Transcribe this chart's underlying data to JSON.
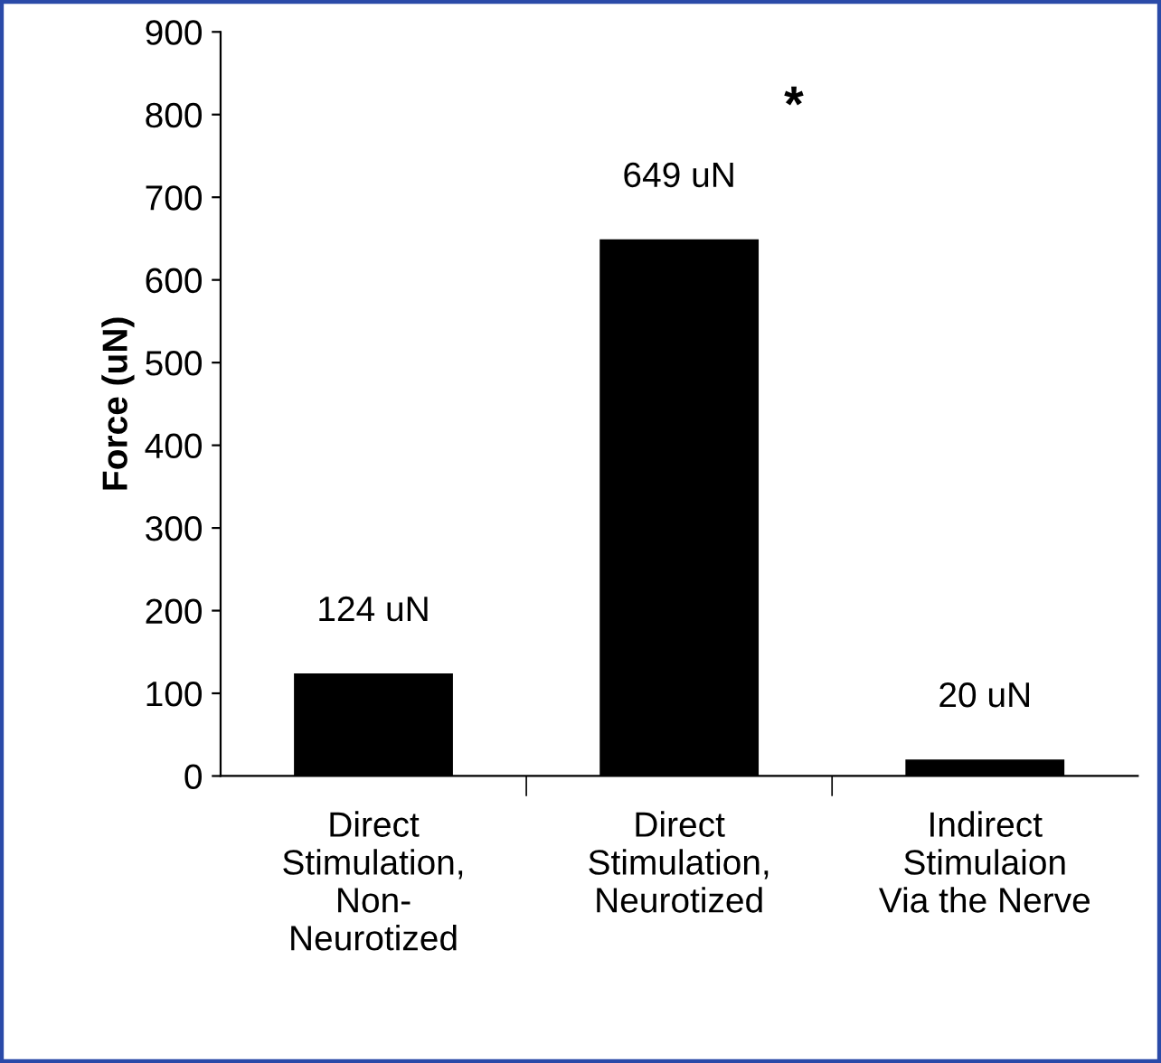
{
  "chart_data": {
    "type": "bar",
    "categories": [
      "Direct\nStimulation,\nNon-\nNeurotized",
      "Direct\nStimulation,\nNeurotized",
      "Indirect\nStimulaion\nVia the Nerve"
    ],
    "values": [
      124,
      649,
      20
    ],
    "value_labels": [
      "124 uN",
      "649 uN",
      "20 uN"
    ],
    "color": "#000000",
    "ylabel": "Force (uN)",
    "ylim": [
      0,
      900
    ],
    "yticks": [
      0,
      100,
      200,
      300,
      400,
      500,
      600,
      700,
      800,
      900
    ],
    "annotations": [
      "*"
    ],
    "grid": false,
    "legend": false
  }
}
